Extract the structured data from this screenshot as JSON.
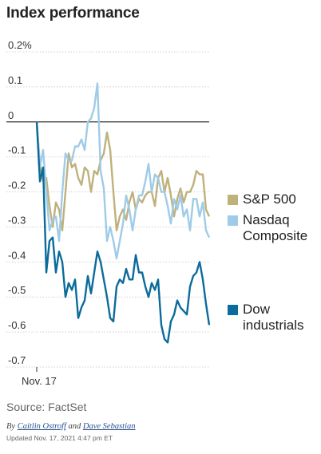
{
  "title": "Index performance",
  "chart_data": {
    "type": "line",
    "ylim": [
      -0.7,
      0.2
    ],
    "y_ticks": [
      "0.2%",
      "0.1",
      "0",
      "-0.1",
      "-0.2",
      "-0.3",
      "-0.4",
      "-0.5",
      "-0.6",
      "-0.7"
    ],
    "y_tick_values": [
      0.2,
      0.1,
      0,
      -0.1,
      -0.2,
      -0.3,
      -0.4,
      -0.5,
      -0.6,
      -0.7
    ],
    "x_tick_label": "Nov. 17",
    "grid": true,
    "legend_position": "right",
    "series": [
      {
        "name": "S&P 500",
        "color": "#bfb17c",
        "values": [
          0.0,
          -0.12,
          -0.17,
          -0.16,
          -0.24,
          -0.3,
          -0.23,
          -0.25,
          -0.31,
          -0.2,
          -0.09,
          -0.13,
          -0.12,
          -0.16,
          -0.18,
          -0.13,
          -0.14,
          -0.2,
          -0.14,
          -0.15,
          -0.11,
          -0.09,
          -0.03,
          -0.08,
          -0.2,
          -0.31,
          -0.27,
          -0.25,
          -0.28,
          -0.23,
          -0.2,
          -0.25,
          -0.22,
          -0.23,
          -0.21,
          -0.2,
          -0.2,
          -0.24,
          -0.16,
          -0.14,
          -0.2,
          -0.16,
          -0.21,
          -0.27,
          -0.22,
          -0.19,
          -0.23,
          -0.2,
          -0.2,
          -0.18,
          -0.14,
          -0.15,
          -0.15,
          -0.25,
          -0.27
        ]
      },
      {
        "name": "Nasdaq Composite",
        "color": "#9fcbe8",
        "values": [
          0.0,
          -0.13,
          -0.08,
          -0.2,
          -0.31,
          -0.28,
          -0.27,
          -0.34,
          -0.2,
          -0.09,
          -0.11,
          -0.11,
          -0.07,
          -0.07,
          -0.05,
          -0.08,
          0.0,
          0.01,
          0.04,
          0.11,
          -0.14,
          -0.19,
          -0.34,
          -0.3,
          -0.34,
          -0.39,
          -0.34,
          -0.29,
          -0.21,
          -0.25,
          -0.31,
          -0.25,
          -0.21,
          -0.21,
          -0.17,
          -0.12,
          -0.2,
          -0.15,
          -0.16,
          -0.2,
          -0.2,
          -0.24,
          -0.29,
          -0.22,
          -0.25,
          -0.21,
          -0.27,
          -0.25,
          -0.31,
          -0.22,
          -0.22,
          -0.27,
          -0.23,
          -0.31,
          -0.33
        ]
      },
      {
        "name": "Dow industrials",
        "color": "#0b6b9a",
        "values": [
          0.0,
          -0.17,
          -0.13,
          -0.43,
          -0.34,
          -0.33,
          -0.43,
          -0.37,
          -0.4,
          -0.5,
          -0.46,
          -0.48,
          -0.45,
          -0.56,
          -0.53,
          -0.51,
          -0.44,
          -0.49,
          -0.43,
          -0.37,
          -0.4,
          -0.45,
          -0.5,
          -0.56,
          -0.57,
          -0.47,
          -0.45,
          -0.46,
          -0.42,
          -0.45,
          -0.45,
          -0.38,
          -0.43,
          -0.43,
          -0.47,
          -0.5,
          -0.46,
          -0.48,
          -0.45,
          -0.58,
          -0.62,
          -0.63,
          -0.57,
          -0.55,
          -0.51,
          -0.53,
          -0.54,
          -0.55,
          -0.47,
          -0.44,
          -0.43,
          -0.4,
          -0.45,
          -0.52,
          -0.58
        ]
      }
    ]
  },
  "legend": [
    {
      "label": "S&P 500",
      "color": "#bfb17c"
    },
    {
      "label": "Nasdaq Composite",
      "color": "#9fcbe8"
    },
    {
      "label": "Dow industrials",
      "color": "#0b6b9a"
    }
  ],
  "source": "Source: FactSet",
  "byline": {
    "prefix": "By ",
    "author1": "Caitlin Ostroff",
    "conj": " and ",
    "author2": "Dave Sebastian"
  },
  "updated": "Updated Nov. 17, 2021 4:47 pm ET"
}
